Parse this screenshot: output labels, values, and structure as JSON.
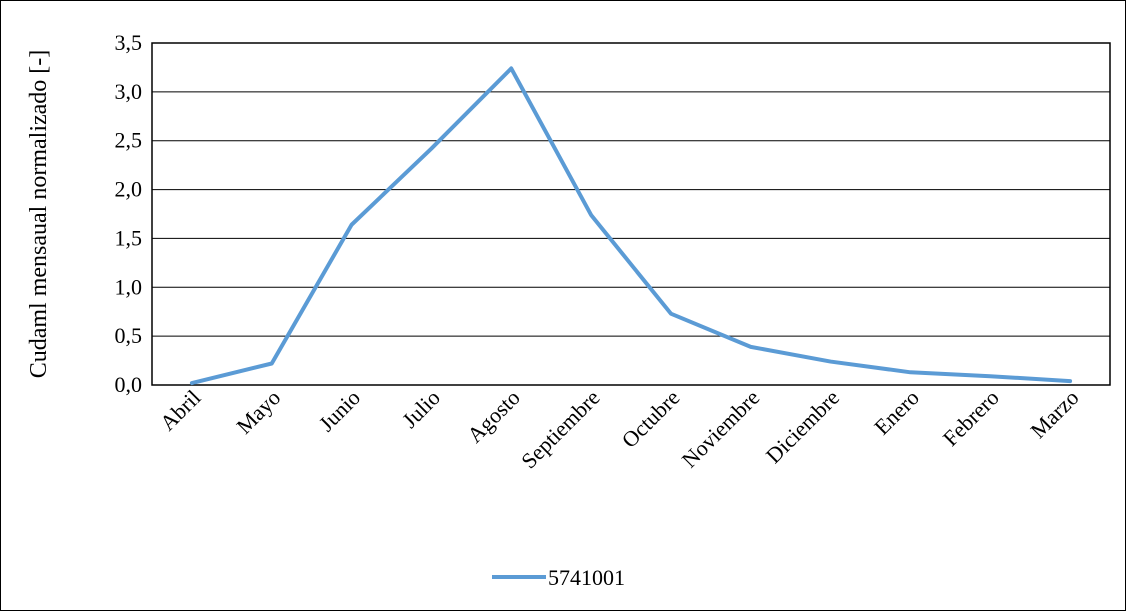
{
  "chart_data": {
    "type": "line",
    "title": "",
    "xlabel": "",
    "ylabel": "Cudaml mensaual normalizado [-]",
    "categories": [
      "Abril",
      "Mayo",
      "Junio",
      "Julio",
      "Agosto",
      "Septiembre",
      "Octubre",
      "Noviembre",
      "Diciembre",
      "Enero",
      "Febrero",
      "Marzo"
    ],
    "series": [
      {
        "name": "5741001",
        "color": "#5B9BD5",
        "values": [
          0.02,
          0.22,
          1.64,
          2.42,
          3.24,
          1.74,
          0.73,
          0.39,
          0.24,
          0.13,
          0.09,
          0.04
        ]
      }
    ],
    "ylim": [
      0,
      3.5
    ],
    "yticks": [
      "0,0",
      "0,5",
      "1,0",
      "1,5",
      "2,0",
      "2,5",
      "3,0",
      "3,5"
    ],
    "grid": true,
    "legend_position": "bottom"
  }
}
